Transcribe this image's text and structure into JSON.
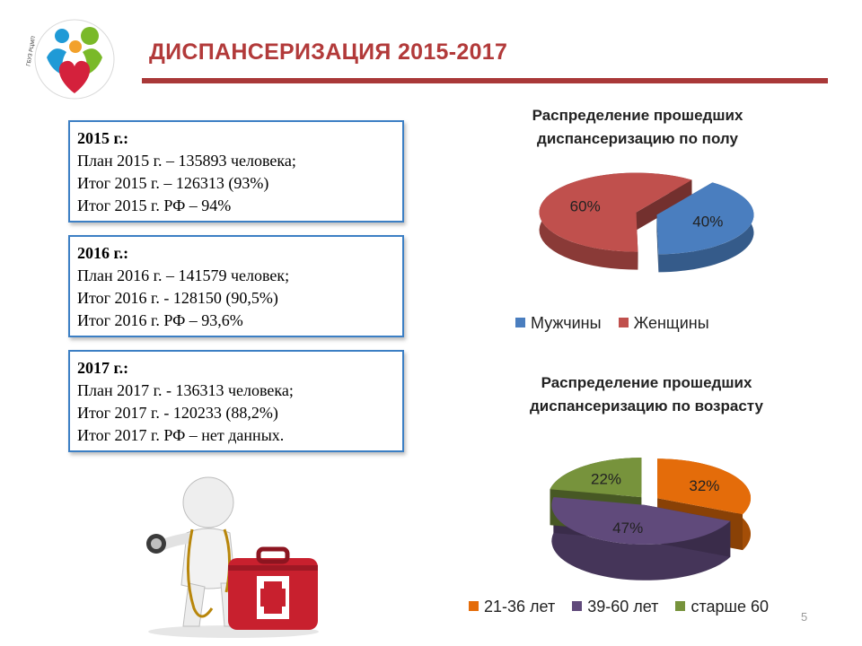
{
  "slide": {
    "title": "ДИСПАНСЕРИЗАЦИЯ 2015-2017",
    "page_number": "5",
    "accent_color": "#a93838"
  },
  "boxes": [
    {
      "year": "2015 г.:",
      "lines": [
        "План 2015 г. – 135893 человека;",
        "Итог 2015 г. – 126313 (93%)",
        "Итог 2015 г. РФ – 94%"
      ]
    },
    {
      "year": "2016 г.:",
      "lines": [
        "План 2016 г. – 141579 человек;",
        "Итог 2016 г. -  128150 (90,5%)",
        "Итог 2016 г. РФ – 93,6%"
      ]
    },
    {
      "year": "2017 г.:",
      "lines": [
        "План 2017 г. - 136313 человека;",
        "Итог 2017 г. - 120233 (88,2%)",
        "Итог 2017 г. РФ – нет данных."
      ]
    }
  ],
  "chart_data": [
    {
      "type": "pie",
      "title": "Распределение прошедших диспансеризацию по полу",
      "title_lines": [
        "Распределение прошедших",
        "диспансеризацию по полу"
      ],
      "categories": [
        "Мужчины",
        "Женщины"
      ],
      "values": [
        40,
        60
      ],
      "labels": [
        "40%",
        "60%"
      ],
      "colors": [
        "#4a7ebf",
        "#c0504d"
      ],
      "legend_position": "bottom"
    },
    {
      "type": "pie",
      "title": "Распределение прошедших диспансеризацию по возрасту",
      "title_lines": [
        "Распределение прошедших",
        "диспансеризацию по возрасту"
      ],
      "categories": [
        "21-36 лет",
        "39-60 лет",
        "старше 60"
      ],
      "values": [
        32,
        47,
        22
      ],
      "labels": [
        "32%",
        "47%",
        "22%"
      ],
      "colors": [
        "#e46c0a",
        "#604a7b",
        "#77933c"
      ],
      "legend_position": "bottom"
    }
  ],
  "icons": {
    "logo": "family-heart-logo-icon",
    "figure": "doctor-figure-with-first-aid-kit-icon"
  }
}
